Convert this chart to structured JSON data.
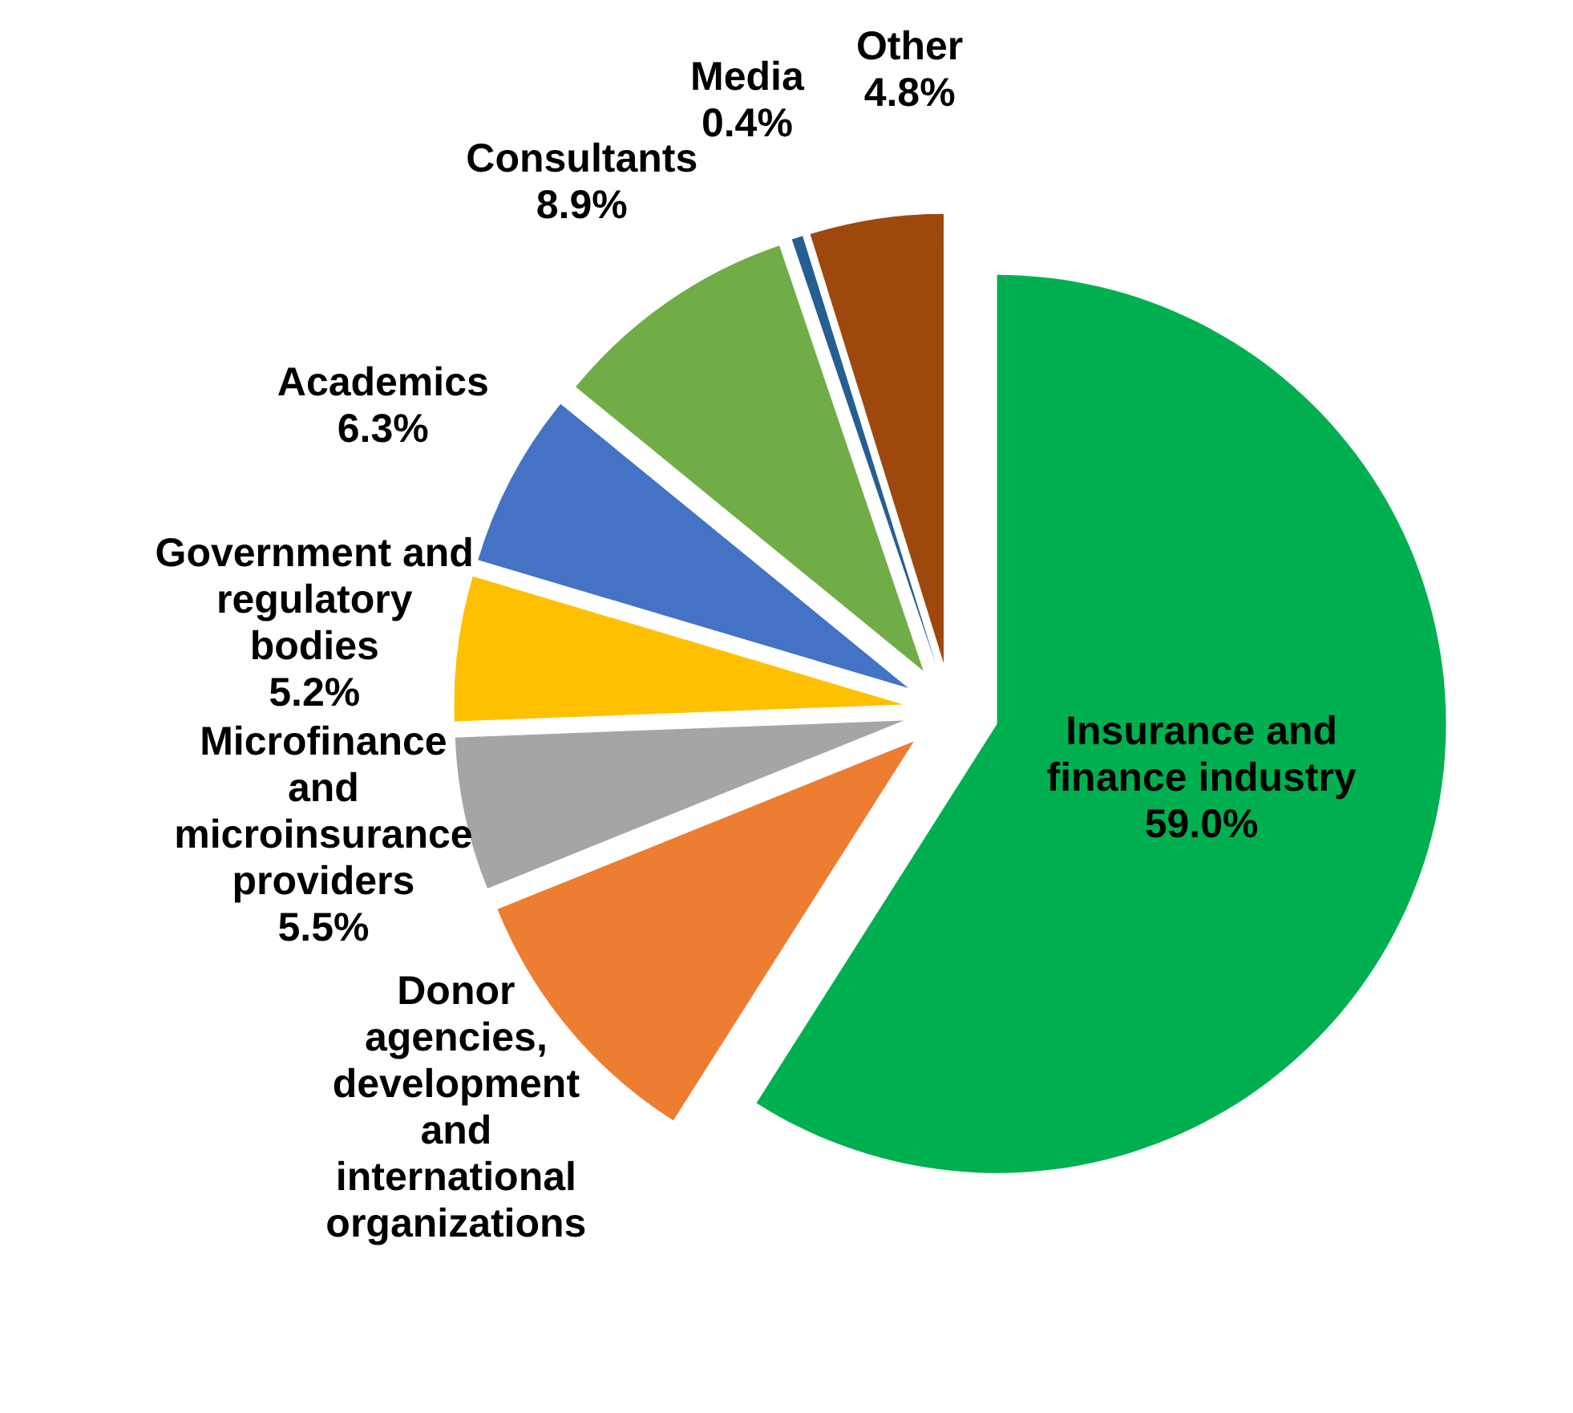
{
  "chart_data": {
    "type": "pie",
    "categories": [
      "Insurance and finance industry",
      "Donor agencies, development and international organizations",
      "Microfinance and microinsurance providers",
      "Government and regulatory bodies",
      "Academics",
      "Consultants",
      "Media",
      "Other"
    ],
    "values": [
      59.0,
      9.9,
      5.5,
      5.2,
      6.3,
      8.9,
      0.4,
      4.8
    ],
    "colors": [
      "#00b050",
      "#ed7d31",
      "#a5a5a5",
      "#ffc000",
      "#4472c4",
      "#70ad47",
      "#255e91",
      "#9e480e"
    ],
    "value_labels": [
      "59.0%",
      null,
      "5.5%",
      "5.2%",
      "6.3%",
      "8.9%",
      "0.4%",
      "4.8%"
    ],
    "legend": false
  }
}
